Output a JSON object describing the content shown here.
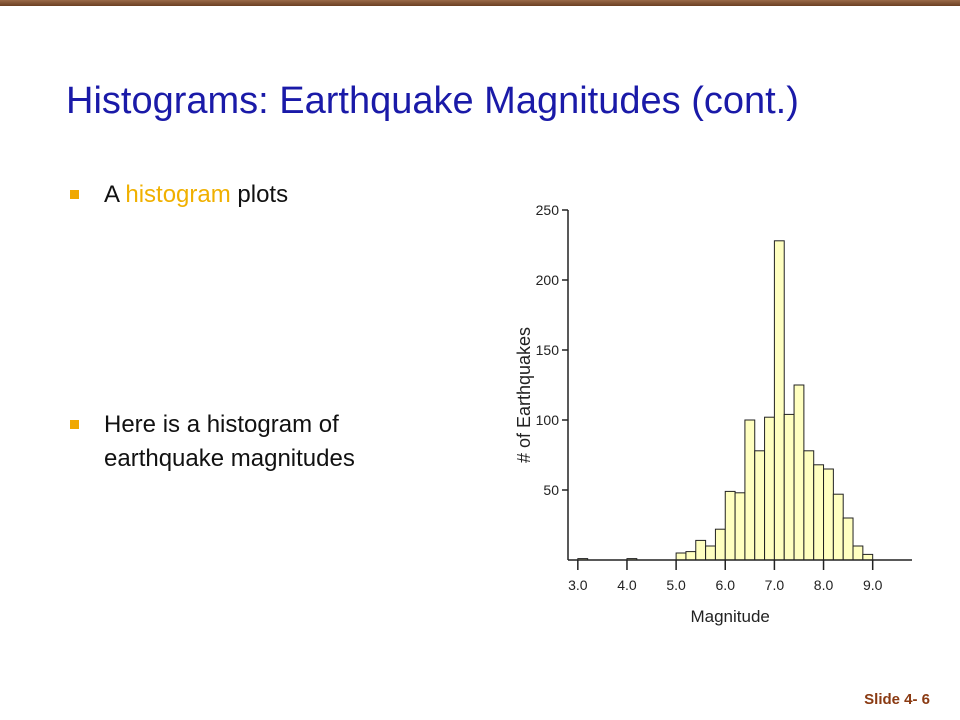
{
  "slide": {
    "title": "Histograms: Earthquake Magnitudes (cont.)",
    "bullets": [
      {
        "parts": [
          "A ",
          "histogram",
          " plots"
        ]
      },
      {
        "text": "Here is a histogram of earthquake magnitudes"
      }
    ],
    "slide_number": "Slide 4- 6"
  },
  "colors": {
    "title": "#1a1aa8",
    "highlight": "#f0b000",
    "bullet_marker": "#f0a800",
    "bar_fill": "#ffffc0",
    "top_bar": "#7a4a2a",
    "slide_number": "#8a3a12"
  },
  "chart_data": {
    "type": "bar",
    "xlabel": "Magnitude",
    "ylabel": "# of Earthquakes",
    "ylim": [
      0,
      250
    ],
    "xlim": [
      2.8,
      9.8
    ],
    "yticks": [
      "50",
      "100",
      "150",
      "200",
      "250"
    ],
    "xticks": [
      "3.0",
      "4.0",
      "5.0",
      "6.0",
      "7.0",
      "8.0",
      "9.0"
    ],
    "bin_width": 0.2,
    "bins": [
      {
        "x": 3.0,
        "y": 1
      },
      {
        "x": 4.0,
        "y": 1
      },
      {
        "x": 5.0,
        "y": 5
      },
      {
        "x": 5.2,
        "y": 6
      },
      {
        "x": 5.4,
        "y": 14
      },
      {
        "x": 5.6,
        "y": 10
      },
      {
        "x": 5.8,
        "y": 22
      },
      {
        "x": 6.0,
        "y": 49
      },
      {
        "x": 6.2,
        "y": 48
      },
      {
        "x": 6.4,
        "y": 100
      },
      {
        "x": 6.6,
        "y": 78
      },
      {
        "x": 6.8,
        "y": 102
      },
      {
        "x": 7.0,
        "y": 228
      },
      {
        "x": 7.2,
        "y": 104
      },
      {
        "x": 7.4,
        "y": 125
      },
      {
        "x": 7.6,
        "y": 78
      },
      {
        "x": 7.8,
        "y": 68
      },
      {
        "x": 8.0,
        "y": 65
      },
      {
        "x": 8.2,
        "y": 47
      },
      {
        "x": 8.4,
        "y": 30
      },
      {
        "x": 8.6,
        "y": 10
      },
      {
        "x": 8.8,
        "y": 4
      }
    ]
  }
}
